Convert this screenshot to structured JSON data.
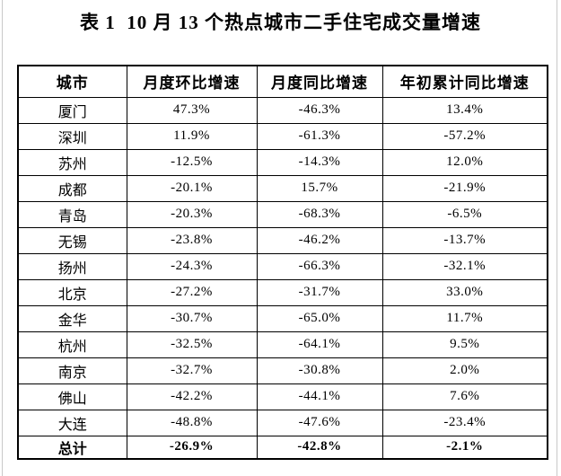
{
  "title": "表 1  10 月 13 个热点城市二手住宅成交量增速",
  "table": {
    "headers": [
      "城市",
      "月度环比增速",
      "月度同比增速",
      "年初累计同比增速"
    ],
    "rows": [
      [
        "厦门",
        "47.3%",
        "-46.3%",
        "13.4%"
      ],
      [
        "深圳",
        "11.9%",
        "-61.3%",
        "-57.2%"
      ],
      [
        "苏州",
        "-12.5%",
        "-14.3%",
        "12.0%"
      ],
      [
        "成都",
        "-20.1%",
        "15.7%",
        "-21.9%"
      ],
      [
        "青岛",
        "-20.3%",
        "-68.3%",
        "-6.5%"
      ],
      [
        "无锡",
        "-23.8%",
        "-46.2%",
        "-13.7%"
      ],
      [
        "扬州",
        "-24.3%",
        "-66.3%",
        "-32.1%"
      ],
      [
        "北京",
        "-27.2%",
        "-31.7%",
        "33.0%"
      ],
      [
        "金华",
        "-30.7%",
        "-65.0%",
        "11.7%"
      ],
      [
        "杭州",
        "-32.5%",
        "-64.1%",
        "9.5%"
      ],
      [
        "南京",
        "-32.7%",
        "-30.8%",
        "2.0%"
      ],
      [
        "佛山",
        "-42.2%",
        "-44.1%",
        "7.6%"
      ],
      [
        "大连",
        "-48.8%",
        "-47.6%",
        "-23.4%"
      ]
    ],
    "total_row": [
      "总计",
      "-26.9%",
      "-42.8%",
      "-2.1%"
    ]
  }
}
